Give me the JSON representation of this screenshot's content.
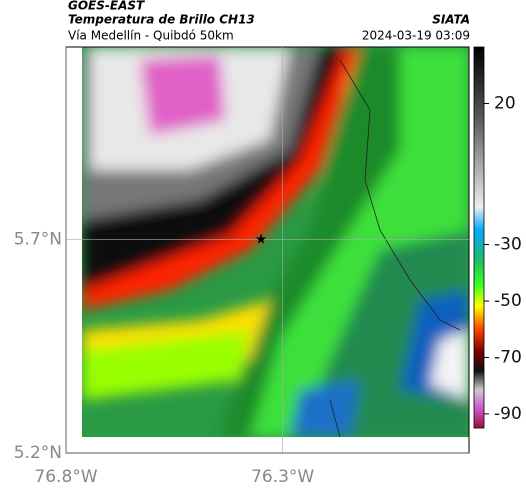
{
  "header": {
    "source": "GOES-EAST",
    "title": "Temperatura de Brillo CH13",
    "subtitle": "Vía Medellín - Quibdó 50km",
    "org": "SIATA",
    "datetime": "2024-03-19 03:09"
  },
  "chart_data": {
    "type": "map",
    "xlim": [
      -76.8,
      -75.87
    ],
    "ylim": [
      5.2,
      6.15
    ],
    "xticks": [
      {
        "value": -76.8,
        "label": "76.8°W"
      },
      {
        "value": -76.3,
        "label": "76.3°W"
      }
    ],
    "yticks": [
      {
        "value": 5.2,
        "label": "5.2°N"
      },
      {
        "value": 5.7,
        "label": "5.7°N"
      }
    ],
    "grid": true,
    "colorbar": {
      "lim": [
        -95,
        40
      ],
      "ticks": [
        20,
        -30,
        -50,
        -70,
        -90
      ]
    },
    "marker": {
      "x": -76.35,
      "y": 5.7
    }
  }
}
